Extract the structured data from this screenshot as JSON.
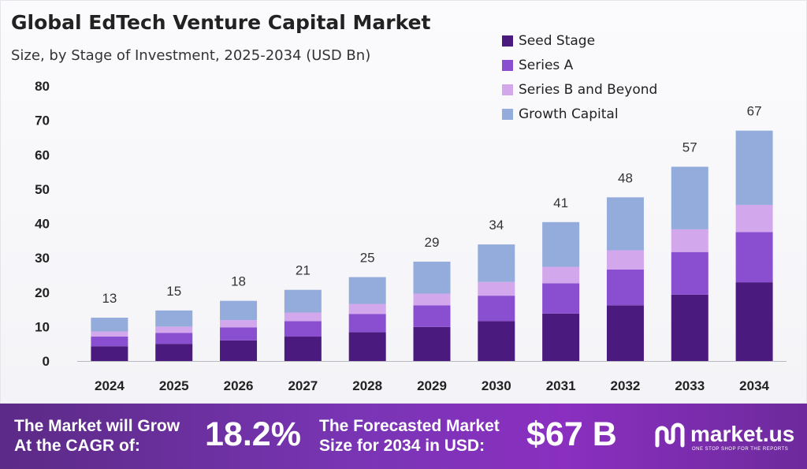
{
  "chart_data": {
    "type": "bar",
    "stacked": true,
    "title": "Global EdTech Venture Capital Market",
    "subtitle": "Size, by Stage of Investment, 2025-2034 (USD Bn)",
    "categories": [
      "2024",
      "2025",
      "2026",
      "2027",
      "2028",
      "2029",
      "2030",
      "2031",
      "2032",
      "2033",
      "2034"
    ],
    "series": [
      {
        "name": "Seed Stage",
        "color": "#4b1a7e",
        "values": [
          4.3,
          5.0,
          6.0,
          7.1,
          8.4,
          9.9,
          11.6,
          13.8,
          16.2,
          19.3,
          22.9
        ]
      },
      {
        "name": "Series A",
        "color": "#8a4fd0",
        "values": [
          2.8,
          3.2,
          3.8,
          4.5,
          5.3,
          6.3,
          7.4,
          8.8,
          10.4,
          12.4,
          14.6
        ]
      },
      {
        "name": "Series B and Beyond",
        "color": "#d3a7ec",
        "values": [
          1.5,
          1.8,
          2.1,
          2.5,
          2.9,
          3.4,
          4.0,
          4.8,
          5.6,
          6.6,
          7.9
        ]
      },
      {
        "name": "Growth Capital",
        "color": "#94acdc",
        "values": [
          4.0,
          4.7,
          5.6,
          6.6,
          7.8,
          9.3,
          10.9,
          13.0,
          15.4,
          18.2,
          21.6
        ]
      }
    ],
    "totals": [
      "13",
      "15",
      "18",
      "21",
      "25",
      "29",
      "34",
      "41",
      "48",
      "57",
      "67"
    ],
    "yticks": [
      0,
      10,
      20,
      30,
      40,
      50,
      60,
      70,
      80
    ],
    "ylim": [
      0,
      80
    ],
    "legend_position": "top-right",
    "grid": false
  },
  "footer": {
    "cagr_line1": "The Market will Grow",
    "cagr_line2": "At the CAGR of:",
    "cagr_value": "18.2%",
    "forecast_line1": "The Forecasted Market",
    "forecast_line2": "Size for 2034 in USD:",
    "forecast_value": "$67 B",
    "logo_name": "market.us",
    "logo_tagline": "ONE STOP SHOP FOR THE REPORTS"
  }
}
